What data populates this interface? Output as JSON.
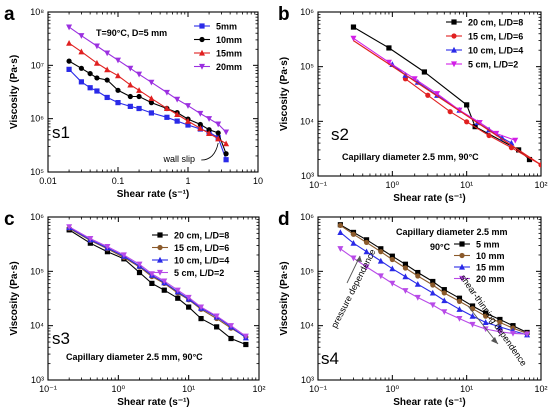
{
  "chart_data": [
    {
      "type": "line",
      "panel": "a",
      "tag": "s1",
      "xlabel": "Shear rate (s⁻¹)",
      "ylabel": "Viscosity (Pa·s)",
      "xscale": "log",
      "yscale": "log",
      "xlim": [
        0.01,
        10
      ],
      "ylim": [
        100000,
        100000000
      ],
      "xticks": [
        "0.01",
        "0.1",
        "1",
        "10"
      ],
      "yticks": [
        "10⁵",
        "10⁶",
        "10⁷",
        "10⁸"
      ],
      "legend_placement": "top-right",
      "annotations": [
        {
          "text": "T=90°C, D=5 mm",
          "kind": "text"
        },
        {
          "text": "wall slip",
          "kind": "callout"
        }
      ],
      "series": [
        {
          "name": "5mm",
          "color": "#2a2ae8",
          "marker": "square",
          "x": [
            0.02,
            0.03,
            0.04,
            0.05,
            0.07,
            0.1,
            0.15,
            0.2,
            0.3,
            0.5,
            0.7,
            1,
            1.5,
            2,
            2.7,
            3.5
          ],
          "y": [
            8400000,
            4900000,
            3800000,
            3300000,
            2500000,
            2000000,
            1700000,
            1550000,
            1280000,
            1060000,
            900000,
            760000,
            640000,
            560000,
            440000,
            170000
          ]
        },
        {
          "name": "10mm",
          "color": "#000000",
          "marker": "circle",
          "x": [
            0.02,
            0.03,
            0.04,
            0.05,
            0.07,
            0.1,
            0.15,
            0.2,
            0.3,
            0.5,
            0.7,
            1,
            1.5,
            2,
            2.7,
            3.5
          ],
          "y": [
            12000000,
            8800000,
            7000000,
            5800000,
            5300000,
            3400000,
            2600000,
            2600000,
            2000000,
            1550000,
            1300000,
            980000,
            780000,
            620000,
            540000,
            220000
          ]
        },
        {
          "name": "15mm",
          "color": "#e02020",
          "marker": "triangle-up",
          "x": [
            0.02,
            0.03,
            0.05,
            0.07,
            0.1,
            0.15,
            0.2,
            0.3,
            0.5,
            0.7,
            1,
            1.5,
            2,
            2.7,
            3.5
          ],
          "y": [
            26000000,
            18000000,
            11000000,
            8300000,
            6400000,
            4300000,
            3400000,
            2400000,
            1560000,
            1200000,
            900000,
            660000,
            530000,
            420000,
            340000
          ]
        },
        {
          "name": "20mm",
          "color": "#9b30e0",
          "marker": "triangle-down",
          "x": [
            0.02,
            0.03,
            0.05,
            0.07,
            0.1,
            0.15,
            0.2,
            0.3,
            0.5,
            0.7,
            1,
            1.5,
            2,
            2.7,
            3.5
          ],
          "y": [
            52000000,
            36000000,
            23000000,
            17000000,
            12500000,
            8800000,
            6800000,
            4800000,
            3100000,
            2300000,
            1750000,
            1250000,
            1000000,
            790000,
            560000
          ]
        }
      ]
    },
    {
      "type": "line",
      "panel": "b",
      "tag": "s2",
      "xlabel": "Shear rate (s⁻¹)",
      "ylabel": "Viscosity (Pa·s)",
      "xscale": "log",
      "yscale": "log",
      "xlim": [
        0.1,
        100
      ],
      "ylim": [
        1000,
        1000000
      ],
      "xticks": [
        "10⁻¹",
        "10⁰",
        "10¹",
        "10²"
      ],
      "yticks": [
        "10³",
        "10⁴",
        "10⁵",
        "10⁶"
      ],
      "legend_placement": "top-right",
      "annotations": [
        {
          "text": "Capillary diameter 2.5 mm, 90°C",
          "kind": "text"
        }
      ],
      "series": [
        {
          "name": "20 cm, L/D=8",
          "color": "#000000",
          "marker": "square",
          "x": [
            0.3,
            0.9,
            2.7,
            10,
            13,
            50,
            70
          ],
          "y": [
            530000,
            220000,
            80000,
            20000,
            8000,
            3000,
            2000
          ]
        },
        {
          "name": "15 cm, L/D=6",
          "color": "#e02020",
          "marker": "circle",
          "x": [
            1.5,
            3,
            6,
            10,
            20,
            40,
            100
          ],
          "y": [
            60000,
            30000,
            15000,
            9800,
            5500,
            3300,
            1600
          ]
        },
        {
          "name": "10 cm, L/D=4",
          "color": "#2a2ae8",
          "marker": "triangle-up",
          "x": [
            1,
            1.5,
            2.2,
            4,
            8,
            14,
            20,
            30,
            40
          ],
          "y": [
            110000,
            70000,
            52000,
            30000,
            16000,
            9500,
            7000,
            5000,
            4000
          ]
        },
        {
          "name": "5 cm, L/D=2",
          "color": "#d21ee6",
          "marker": "triangle-down",
          "x": [
            0.3,
            0.9,
            2,
            4,
            8,
            15,
            25,
            45
          ],
          "y": [
            330000,
            120000,
            60000,
            32000,
            16000,
            9500,
            6000,
            4500
          ]
        }
      ]
    },
    {
      "type": "line",
      "panel": "c",
      "tag": "s3",
      "xlabel": "Shear rate (s⁻¹)",
      "ylabel": "Viscosity (Pa·s)",
      "xscale": "log",
      "yscale": "log",
      "xlim": [
        0.1,
        100
      ],
      "ylim": [
        1000,
        1000000
      ],
      "xticks": [
        "10⁻¹",
        "10⁰",
        "10¹",
        "10²"
      ],
      "yticks": [
        "10³",
        "10⁴",
        "10⁵",
        "10⁶"
      ],
      "legend_placement": "top-right",
      "annotations": [
        {
          "text": "Capillary diameter 2.5 mm, 90°C",
          "kind": "text"
        }
      ],
      "series": [
        {
          "name": "20 cm, L/D=8",
          "color": "#000000",
          "marker": "square",
          "x": [
            0.2,
            0.4,
            0.7,
            1.2,
            2,
            3,
            4.5,
            7,
            10,
            15,
            25,
            40,
            65
          ],
          "y": [
            580000,
            330000,
            230000,
            170000,
            95000,
            60000,
            45000,
            32000,
            22000,
            13500,
            9500,
            5800,
            4500
          ]
        },
        {
          "name": "15 cm, L/D=6",
          "color": "#8b5a2b",
          "marker": "circle",
          "x": [
            0.2,
            0.4,
            0.7,
            1.2,
            2,
            3,
            4.5,
            7,
            10,
            15,
            25,
            40,
            65
          ],
          "y": [
            620000,
            370000,
            260000,
            180000,
            120000,
            80000,
            60000,
            40000,
            30000,
            20000,
            13500,
            9000,
            6200
          ]
        },
        {
          "name": "10 cm, L/D=4",
          "color": "#2a2ae8",
          "marker": "triangle-up",
          "x": [
            0.2,
            0.4,
            0.7,
            1.2,
            2,
            3,
            4.5,
            7,
            10,
            15,
            25,
            40,
            65
          ],
          "y": [
            640000,
            380000,
            270000,
            190000,
            125000,
            85000,
            62000,
            42000,
            31000,
            21000,
            14500,
            9500,
            6000
          ]
        },
        {
          "name": "5 cm, L/D=2",
          "color": "#b84ae8",
          "marker": "triangle-down",
          "x": [
            0.2,
            0.4,
            0.7,
            1.2,
            2,
            3,
            4.5,
            7,
            10,
            15,
            25,
            40,
            65
          ],
          "y": [
            660000,
            400000,
            285000,
            200000,
            135000,
            90000,
            66000,
            45000,
            33000,
            22000,
            15000,
            10000,
            6400
          ]
        }
      ]
    },
    {
      "type": "line",
      "panel": "d",
      "tag": "s4",
      "xlabel": "Shear rate (s⁻¹)",
      "ylabel": "Viscosity (Pa·s)",
      "xscale": "log",
      "yscale": "log",
      "xlim": [
        0.1,
        100
      ],
      "ylim": [
        1000,
        1000000
      ],
      "xticks": [
        "10⁻¹",
        "10⁰",
        "10¹",
        "10²"
      ],
      "yticks": [
        "10³",
        "10⁴",
        "10⁵",
        "10⁶"
      ],
      "legend_placement": "top-right",
      "annotations": [
        {
          "text": "Capillary diameter 2.5 mm",
          "kind": "text"
        },
        {
          "text": "90°C",
          "kind": "text"
        },
        {
          "text": "pressure dependence",
          "kind": "arrow-label"
        },
        {
          "text": "shear-thinning dependence",
          "kind": "arrow-label"
        }
      ],
      "series": [
        {
          "name": "5 mm",
          "color": "#000000",
          "marker": "square",
          "x": [
            0.2,
            0.3,
            0.45,
            0.7,
            1,
            1.5,
            2.2,
            3.5,
            5,
            8,
            12,
            18,
            28,
            42,
            65
          ],
          "y": [
            720000,
            520000,
            380000,
            260000,
            190000,
            135000,
            95000,
            65000,
            46000,
            32000,
            23000,
            17000,
            13000,
            10000,
            7500
          ]
        },
        {
          "name": "10 mm",
          "color": "#8b5a2b",
          "marker": "circle",
          "x": [
            0.2,
            0.3,
            0.45,
            0.7,
            1,
            1.5,
            2.2,
            3.5,
            5,
            8,
            12,
            18,
            28,
            42,
            65
          ],
          "y": [
            700000,
            480000,
            340000,
            230000,
            165000,
            115000,
            82000,
            56000,
            40000,
            28000,
            20500,
            15000,
            11500,
            9000,
            7200
          ]
        },
        {
          "name": "15 mm",
          "color": "#2a2ae8",
          "marker": "triangle-up",
          "x": [
            0.2,
            0.3,
            0.45,
            0.7,
            1,
            1.5,
            2.2,
            3.5,
            5,
            8,
            12,
            18,
            28,
            42,
            65
          ],
          "y": [
            520000,
            330000,
            230000,
            155000,
            112000,
            80000,
            58000,
            40000,
            29000,
            20000,
            15000,
            11500,
            9500,
            8000,
            6800
          ]
        },
        {
          "name": "20 mm",
          "color": "#b84ae8",
          "marker": "triangle-down",
          "x": [
            0.2,
            0.3,
            0.45,
            0.7,
            1,
            1.5,
            2.2,
            3.5,
            5,
            8,
            12,
            18,
            28,
            42,
            65
          ],
          "y": [
            260000,
            175000,
            120000,
            82000,
            60000,
            44000,
            33000,
            24000,
            18000,
            13500,
            10500,
            8700,
            7700,
            7200,
            7000
          ]
        }
      ]
    }
  ]
}
